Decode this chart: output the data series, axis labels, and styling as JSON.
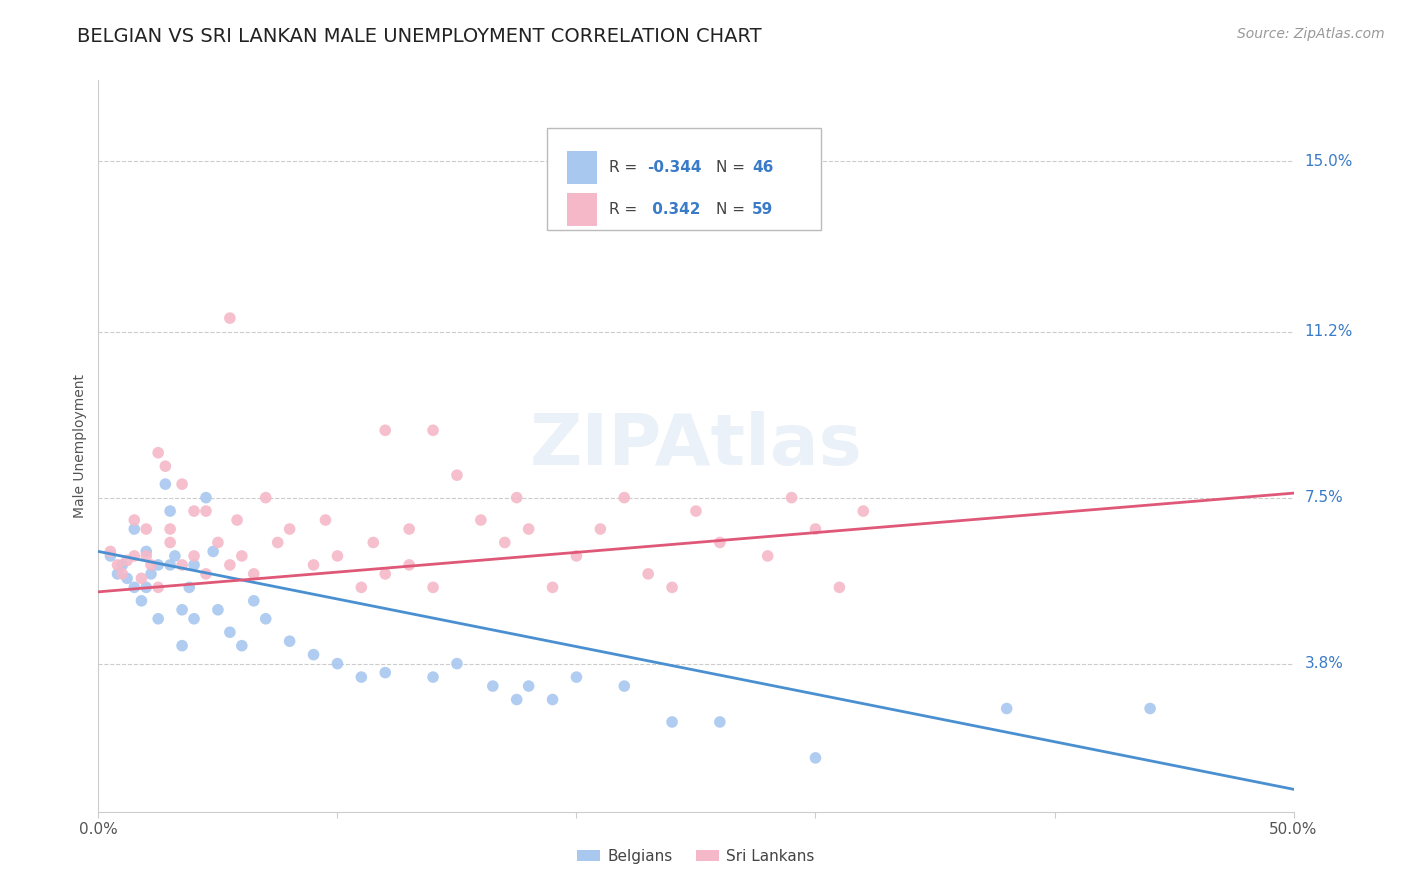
{
  "title": "BELGIAN VS SRI LANKAN MALE UNEMPLOYMENT CORRELATION CHART",
  "source": "Source: ZipAtlas.com",
  "ylabel": "Male Unemployment",
  "ytick_labels": [
    "15.0%",
    "11.2%",
    "7.5%",
    "3.8%"
  ],
  "ytick_values": [
    0.15,
    0.112,
    0.075,
    0.038
  ],
  "xlim": [
    0.0,
    0.5
  ],
  "ylim": [
    0.005,
    0.168
  ],
  "legend_r_blue": "R = -0.344",
  "legend_n_blue": "N = 46",
  "legend_r_pink": "R =  0.342",
  "legend_n_pink": "N = 59",
  "legend_label_blue": "Belgians",
  "legend_label_pink": "Sri Lankans",
  "blue_scatter": [
    [
      0.005,
      0.062
    ],
    [
      0.008,
      0.058
    ],
    [
      0.01,
      0.06
    ],
    [
      0.012,
      0.057
    ],
    [
      0.015,
      0.068
    ],
    [
      0.015,
      0.055
    ],
    [
      0.018,
      0.052
    ],
    [
      0.02,
      0.063
    ],
    [
      0.02,
      0.055
    ],
    [
      0.022,
      0.058
    ],
    [
      0.025,
      0.06
    ],
    [
      0.025,
      0.048
    ],
    [
      0.028,
      0.078
    ],
    [
      0.03,
      0.072
    ],
    [
      0.03,
      0.06
    ],
    [
      0.032,
      0.062
    ],
    [
      0.035,
      0.05
    ],
    [
      0.035,
      0.042
    ],
    [
      0.038,
      0.055
    ],
    [
      0.04,
      0.06
    ],
    [
      0.04,
      0.048
    ],
    [
      0.045,
      0.075
    ],
    [
      0.048,
      0.063
    ],
    [
      0.05,
      0.05
    ],
    [
      0.055,
      0.045
    ],
    [
      0.06,
      0.042
    ],
    [
      0.065,
      0.052
    ],
    [
      0.07,
      0.048
    ],
    [
      0.08,
      0.043
    ],
    [
      0.09,
      0.04
    ],
    [
      0.1,
      0.038
    ],
    [
      0.11,
      0.035
    ],
    [
      0.12,
      0.036
    ],
    [
      0.14,
      0.035
    ],
    [
      0.15,
      0.038
    ],
    [
      0.165,
      0.033
    ],
    [
      0.175,
      0.03
    ],
    [
      0.18,
      0.033
    ],
    [
      0.19,
      0.03
    ],
    [
      0.2,
      0.035
    ],
    [
      0.22,
      0.033
    ],
    [
      0.24,
      0.025
    ],
    [
      0.26,
      0.025
    ],
    [
      0.3,
      0.017
    ],
    [
      0.38,
      0.028
    ],
    [
      0.44,
      0.028
    ]
  ],
  "pink_scatter": [
    [
      0.005,
      0.063
    ],
    [
      0.008,
      0.06
    ],
    [
      0.01,
      0.058
    ],
    [
      0.012,
      0.061
    ],
    [
      0.015,
      0.07
    ],
    [
      0.015,
      0.062
    ],
    [
      0.018,
      0.057
    ],
    [
      0.02,
      0.068
    ],
    [
      0.02,
      0.062
    ],
    [
      0.022,
      0.06
    ],
    [
      0.025,
      0.055
    ],
    [
      0.028,
      0.082
    ],
    [
      0.03,
      0.065
    ],
    [
      0.03,
      0.068
    ],
    [
      0.035,
      0.06
    ],
    [
      0.04,
      0.072
    ],
    [
      0.04,
      0.062
    ],
    [
      0.045,
      0.058
    ],
    [
      0.05,
      0.065
    ],
    [
      0.055,
      0.06
    ],
    [
      0.058,
      0.07
    ],
    [
      0.06,
      0.062
    ],
    [
      0.065,
      0.058
    ],
    [
      0.07,
      0.075
    ],
    [
      0.075,
      0.065
    ],
    [
      0.08,
      0.068
    ],
    [
      0.09,
      0.06
    ],
    [
      0.095,
      0.07
    ],
    [
      0.1,
      0.062
    ],
    [
      0.11,
      0.055
    ],
    [
      0.115,
      0.065
    ],
    [
      0.12,
      0.058
    ],
    [
      0.13,
      0.06
    ],
    [
      0.14,
      0.09
    ],
    [
      0.15,
      0.08
    ],
    [
      0.16,
      0.07
    ],
    [
      0.17,
      0.065
    ],
    [
      0.175,
      0.075
    ],
    [
      0.18,
      0.068
    ],
    [
      0.19,
      0.055
    ],
    [
      0.2,
      0.062
    ],
    [
      0.21,
      0.068
    ],
    [
      0.22,
      0.075
    ],
    [
      0.23,
      0.058
    ],
    [
      0.24,
      0.055
    ],
    [
      0.25,
      0.072
    ],
    [
      0.26,
      0.065
    ],
    [
      0.28,
      0.062
    ],
    [
      0.29,
      0.075
    ],
    [
      0.3,
      0.068
    ],
    [
      0.31,
      0.055
    ],
    [
      0.32,
      0.072
    ],
    [
      0.12,
      0.09
    ],
    [
      0.13,
      0.068
    ],
    [
      0.14,
      0.055
    ],
    [
      0.025,
      0.085
    ],
    [
      0.035,
      0.078
    ],
    [
      0.045,
      0.072
    ],
    [
      0.055,
      0.115
    ]
  ],
  "blue_line_x": [
    0.0,
    0.5
  ],
  "blue_line_y": [
    0.063,
    0.01
  ],
  "pink_line_x": [
    0.0,
    0.5
  ],
  "pink_line_y": [
    0.054,
    0.076
  ],
  "scatter_size": 70,
  "blue_color": "#A8C8F0",
  "pink_color": "#F5B8C8",
  "blue_line_color": "#4A90D0",
  "pink_line_color": "#E05878",
  "grid_color": "#CCCCCC",
  "title_fontsize": 14,
  "axis_label_fontsize": 10,
  "tick_fontsize": 11,
  "source_fontsize": 10
}
